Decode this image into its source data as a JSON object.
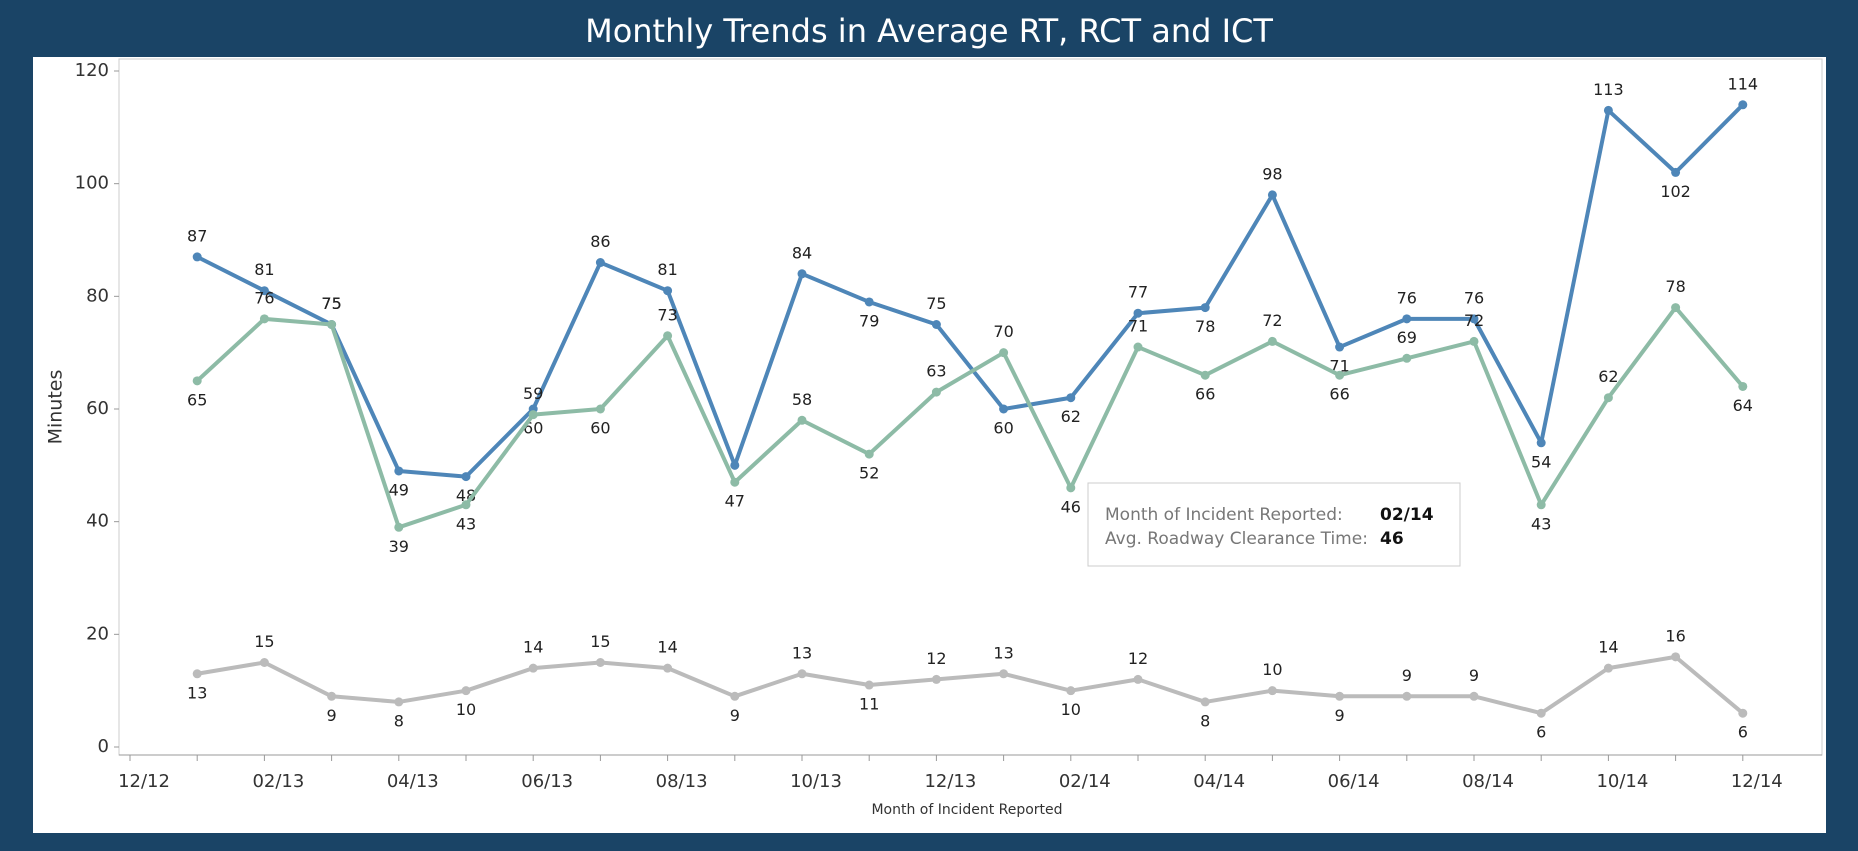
{
  "chart_data": {
    "type": "line",
    "title": "Monthly Trends in Average RT, RCT and ICT",
    "y_label": "Minutes",
    "x_label": "Month of Incident Reported",
    "categories": [
      "12/12",
      null,
      "02/13",
      null,
      "04/13",
      null,
      "06/13",
      null,
      "08/13",
      null,
      "10/13",
      null,
      "12/13",
      null,
      "02/14",
      null,
      "04/14",
      null,
      "06/14",
      null,
      "08/14",
      null,
      "10/14",
      null,
      "12/14"
    ],
    "series": [
      {
        "color": "#4e86b8",
        "values": [
          null,
          87,
          81,
          75,
          49,
          48,
          60,
          86,
          81,
          50,
          84,
          79,
          75,
          60,
          62,
          77,
          78,
          98,
          71,
          76,
          76,
          54,
          113,
          102,
          114
        ],
        "value_labels": [
          null,
          "87",
          "81",
          "75",
          "49",
          "48",
          "60",
          "86",
          "81",
          null,
          "84",
          "79",
          "75",
          "60",
          "62",
          "77",
          "78",
          "98",
          "71",
          "76",
          "76",
          "54",
          "113",
          "102",
          "114"
        ]
      },
      {
        "color": "#8dbba6",
        "values": [
          null,
          65,
          76,
          75,
          39,
          43,
          59,
          60,
          73,
          47,
          58,
          52,
          63,
          70,
          46,
          71,
          66,
          72,
          66,
          69,
          72,
          43,
          62,
          78,
          64
        ]
      },
      {
        "color": "#bbbbbb",
        "values": [
          null,
          13,
          15,
          9,
          8,
          10,
          14,
          15,
          14,
          9,
          13,
          11,
          12,
          13,
          10,
          12,
          8,
          10,
          9,
          9,
          9,
          6,
          14,
          16,
          6
        ]
      }
    ],
    "ylim": [
      0,
      120
    ],
    "yticks": [
      0,
      20,
      40,
      60,
      80,
      100,
      120
    ],
    "tooltip": {
      "label1": "Month of Incident Reported:",
      "value1": "02/14",
      "label2": "Avg. Roadway Clearance Time:",
      "value2": "46"
    }
  }
}
